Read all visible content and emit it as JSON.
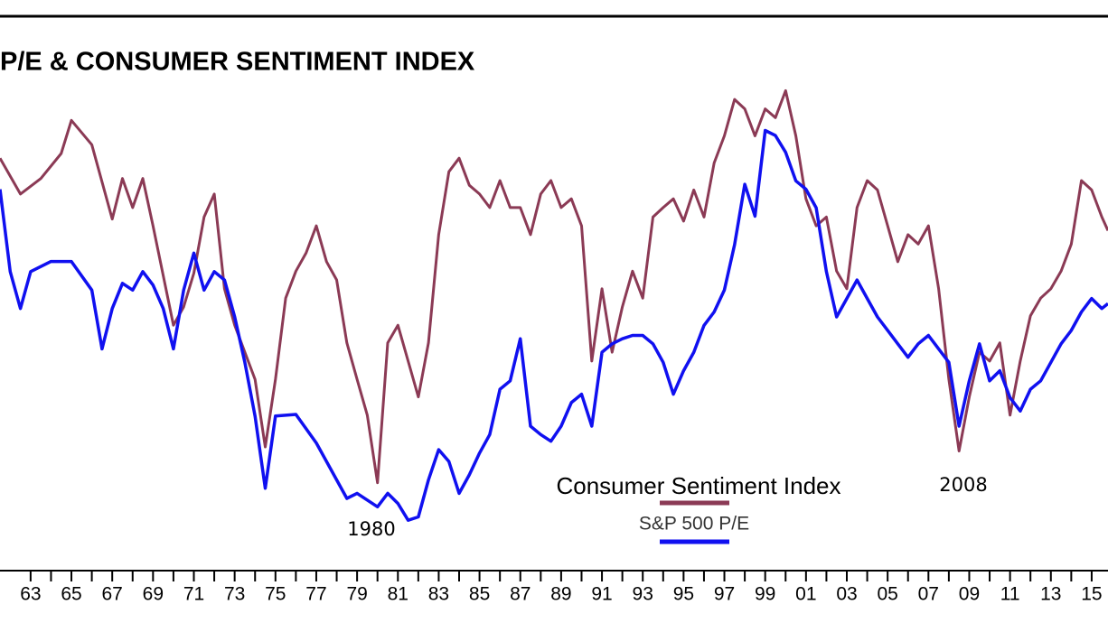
{
  "chart_data": {
    "type": "line",
    "title": "P/E & CONSUMER SENTIMENT INDEX",
    "xlim": [
      1961.5,
      2015.8
    ],
    "xticks": [
      {
        "value": 1963,
        "label": "63"
      },
      {
        "value": 1965,
        "label": "65"
      },
      {
        "value": 1967,
        "label": "67"
      },
      {
        "value": 1969,
        "label": "69"
      },
      {
        "value": 1971,
        "label": "71"
      },
      {
        "value": 1973,
        "label": "73"
      },
      {
        "value": 1975,
        "label": "75"
      },
      {
        "value": 1977,
        "label": "77"
      },
      {
        "value": 1979,
        "label": "79"
      },
      {
        "value": 1981,
        "label": "81"
      },
      {
        "value": 1983,
        "label": "83"
      },
      {
        "value": 1985,
        "label": "85"
      },
      {
        "value": 1987,
        "label": "87"
      },
      {
        "value": 1989,
        "label": "89"
      },
      {
        "value": 1991,
        "label": "91"
      },
      {
        "value": 1993,
        "label": "93"
      },
      {
        "value": 1995,
        "label": "95"
      },
      {
        "value": 1997,
        "label": "97"
      },
      {
        "value": 1999,
        "label": "99"
      },
      {
        "value": 2001,
        "label": "01"
      },
      {
        "value": 2003,
        "label": "03"
      },
      {
        "value": 2005,
        "label": "05"
      },
      {
        "value": 2007,
        "label": "07"
      },
      {
        "value": 2009,
        "label": "09"
      },
      {
        "value": 2011,
        "label": "11"
      },
      {
        "value": 2013,
        "label": "13"
      },
      {
        "value": 2015,
        "label": "15"
      }
    ],
    "ylim": [
      39,
      121
    ],
    "y2lim": [
      3.5,
      36.5
    ],
    "annotations": [
      "1980",
      "2008"
    ],
    "series": [
      {
        "name": "Consumer Sentiment Index",
        "color": "#8b3a55",
        "x": [
          1961.5,
          1962.5,
          1963.5,
          1964.5,
          1965,
          1966,
          1967,
          1967.5,
          1968,
          1968.5,
          1969,
          1970,
          1970.5,
          1971,
          1971.5,
          1972,
          1972.5,
          1973,
          1974,
          1974.5,
          1975,
          1975.5,
          1976,
          1976.5,
          1977,
          1977.5,
          1978,
          1978.5,
          1979,
          1979.5,
          1980,
          1980.5,
          1981,
          1981.5,
          1982,
          1982.5,
          1983,
          1983.5,
          1984,
          1984.5,
          1985,
          1985.5,
          1986,
          1986.5,
          1987,
          1987.5,
          1988,
          1988.5,
          1989,
          1989.5,
          1990,
          1990.5,
          1991,
          1991.5,
          1992,
          1992.5,
          1993,
          1993.5,
          1994,
          1994.5,
          1995,
          1995.5,
          1996,
          1996.5,
          1997,
          1997.5,
          1998,
          1998.5,
          1999,
          1999.5,
          2000,
          2000.5,
          2001,
          2001.5,
          2002,
          2002.5,
          2003,
          2003.5,
          2004,
          2004.5,
          2005,
          2005.5,
          2006,
          2006.5,
          2007,
          2007.5,
          2008,
          2008.5,
          2009,
          2009.5,
          2010,
          2010.5,
          2011,
          2011.5,
          2012,
          2012.5,
          2013,
          2013.5,
          2014,
          2014.5,
          2015,
          2015.5,
          2015.8
        ],
        "values": [
          100,
          94.7,
          97,
          100.7,
          105.6,
          102,
          91,
          97,
          92.7,
          97,
          90,
          75.3,
          78,
          83,
          91.3,
          94.7,
          80.7,
          75.3,
          67.3,
          57.3,
          67.3,
          79.3,
          83.3,
          86,
          90,
          84.7,
          82,
          72.7,
          67.3,
          62,
          52,
          72.7,
          75.3,
          70,
          64.7,
          72.7,
          88.7,
          98,
          100,
          96,
          94.7,
          92.7,
          96.7,
          92.7,
          92.7,
          88.7,
          94.7,
          96.7,
          92.7,
          94,
          90,
          70,
          80.7,
          71.3,
          78,
          83.3,
          79.3,
          91.3,
          92.7,
          94,
          90.7,
          95.3,
          91.3,
          99.3,
          103.3,
          108.7,
          107.3,
          103.3,
          107.3,
          106,
          110,
          103.3,
          94,
          90,
          91.3,
          83.3,
          80.7,
          92.7,
          96.7,
          95.3,
          90,
          84.7,
          88.7,
          87.3,
          90,
          80.7,
          67.3,
          56.7,
          64.7,
          71.3,
          70,
          72.7,
          62,
          70,
          76.7,
          79.3,
          80.7,
          83.3,
          87.3,
          96.7,
          95.3,
          91.3,
          89.3
        ]
      },
      {
        "name": "S&P 500 P/E",
        "color": "#1010f0",
        "axis": "y2",
        "x": [
          1961.5,
          1962,
          1962.5,
          1963,
          1964,
          1965,
          1966,
          1966.5,
          1967,
          1967.5,
          1968,
          1968.5,
          1969,
          1969.5,
          1970,
          1970.5,
          1971,
          1971.5,
          1972,
          1972.5,
          1973,
          1973.5,
          1974,
          1974.5,
          1975,
          1976,
          1977,
          1978,
          1978.5,
          1979,
          1980,
          1980.5,
          1981,
          1981.5,
          1982,
          1982.5,
          1983,
          1983.5,
          1984,
          1984.5,
          1985,
          1985.5,
          1986,
          1986.5,
          1987,
          1987.5,
          1988,
          1988.5,
          1989,
          1989.5,
          1990,
          1990.5,
          1991,
          1991.5,
          1992,
          1992.5,
          1993,
          1993.5,
          1994,
          1994.5,
          1995,
          1995.5,
          1996,
          1996.5,
          1997,
          1997.5,
          1998,
          1998.5,
          1999,
          1999.5,
          2000,
          2000.5,
          2001,
          2001.5,
          2002,
          2002.5,
          2003,
          2003.5,
          2004,
          2004.5,
          2005,
          2005.5,
          2006,
          2006.5,
          2007,
          2007.5,
          2008,
          2008.5,
          2009,
          2009.5,
          2010,
          2010.5,
          2011,
          2011.5,
          2012,
          2012.5,
          2013,
          2013.5,
          2014,
          2014.5,
          2015,
          2015.5,
          2015.8
        ],
        "values": [
          26.2,
          21.3,
          19.1,
          21.3,
          21.9,
          21.9,
          20.2,
          16.7,
          19.1,
          20.6,
          20.2,
          21.3,
          20.5,
          19.1,
          16.7,
          20.2,
          22.4,
          20.2,
          21.3,
          20.8,
          18.6,
          15.9,
          12.7,
          8.4,
          12.7,
          12.8,
          11.1,
          8.9,
          7.8,
          8.1,
          7.3,
          8.1,
          7.5,
          6.5,
          6.7,
          8.9,
          10.7,
          10,
          8.1,
          9.2,
          10.5,
          11.6,
          14.3,
          14.8,
          17.3,
          12.1,
          11.6,
          11.2,
          12.1,
          13.5,
          14,
          12.1,
          16.5,
          17,
          17.3,
          17.5,
          17.5,
          17,
          15.9,
          14,
          15.4,
          16.5,
          18.1,
          18.9,
          20.2,
          22.9,
          26.5,
          24.6,
          29.7,
          29.4,
          28.4,
          26.7,
          26.2,
          25.1,
          21.3,
          18.6,
          19.7,
          20.8,
          19.7,
          18.6,
          17.8,
          17,
          16.2,
          17,
          17.5,
          16.7,
          15.9,
          12.1,
          14.8,
          17,
          14.8,
          15.4,
          13.8,
          13,
          14.3,
          14.8,
          15.9,
          17,
          17.8,
          18.9,
          19.7,
          19.1,
          19.4
        ]
      }
    ]
  }
}
